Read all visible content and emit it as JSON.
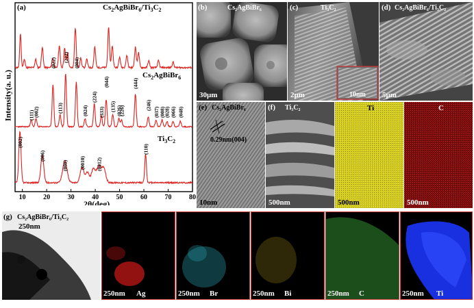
{
  "xrd": {
    "panel_label": "(a)",
    "ylabel": "Intensity(a. u.)",
    "xlabel": "2θ(deg)",
    "xticks": [
      "10",
      "20",
      "30",
      "40",
      "50",
      "60",
      "70",
      "80"
    ],
    "traces": [
      {
        "name_main": "Cs",
        "sub1": "2",
        "name_mid": "AgBiBr",
        "sub2": "6",
        "name_tail": "/Ti",
        "sub3": "3",
        "name_end": "C",
        "sub4": "2"
      },
      {
        "name_main": "Cs",
        "sub1": "2",
        "name_mid": "AgBiBr",
        "sub2": "6"
      },
      {
        "name_main": "Ti",
        "sub1": "3",
        "name_mid": "C",
        "sub2": "2"
      }
    ],
    "peak_labels_mid": [
      "(111)",
      "(002)",
      "(022)",
      "(113)",
      "(222)",
      "(004)",
      "(024)",
      "(224)",
      "(333)",
      "(044)",
      "(135)",
      "(026)",
      "(226)",
      "(444)",
      "(246)",
      "(037)",
      "(008)",
      "(028)",
      "(066)",
      "(048)"
    ],
    "peak_labels_bottom": [
      "(002)",
      "(006)",
      "(008)",
      "(0010)",
      "(0012)",
      "(110)"
    ]
  },
  "sem": {
    "b": {
      "label": "(b)",
      "title": "Cs₂AgBiBr₆",
      "scale": "30μm"
    },
    "c": {
      "label": "(c)",
      "title": "Ti₃C₂",
      "scale": "2μm",
      "inset_scale": "10nm"
    },
    "d": {
      "label": "(d)",
      "title": "Cs₂AgBiBr₆/Ti₃C₂",
      "scale": "5μm"
    }
  },
  "tem": {
    "e": {
      "label": "(e)",
      "title": "Cs₂AgBiBr₆",
      "lattice": "0.29nm(004)",
      "scale": "10nm"
    },
    "f": {
      "label": "(f)",
      "title": "Ti₃C₂",
      "scale": "500nm"
    },
    "ti": {
      "element": "Ti",
      "scale": "500nm"
    },
    "c": {
      "element": "C",
      "scale": "500nm"
    }
  },
  "eds": {
    "g": {
      "label": "(g)",
      "title": "Cs₂AgBiBr₆/Ti₃C₂",
      "scale": "250nm"
    },
    "maps": [
      {
        "element": "Ag",
        "scale": "250nm",
        "color": "#d01818"
      },
      {
        "element": "Br",
        "scale": "250nm",
        "color": "#2aa8b8"
      },
      {
        "element": "Bi",
        "scale": "250nm",
        "color": "#b8a020"
      },
      {
        "element": "C",
        "scale": "250nm",
        "color": "#3cae3c"
      },
      {
        "element": "Ti",
        "scale": "250nm",
        "color": "#1830e0"
      }
    ]
  }
}
